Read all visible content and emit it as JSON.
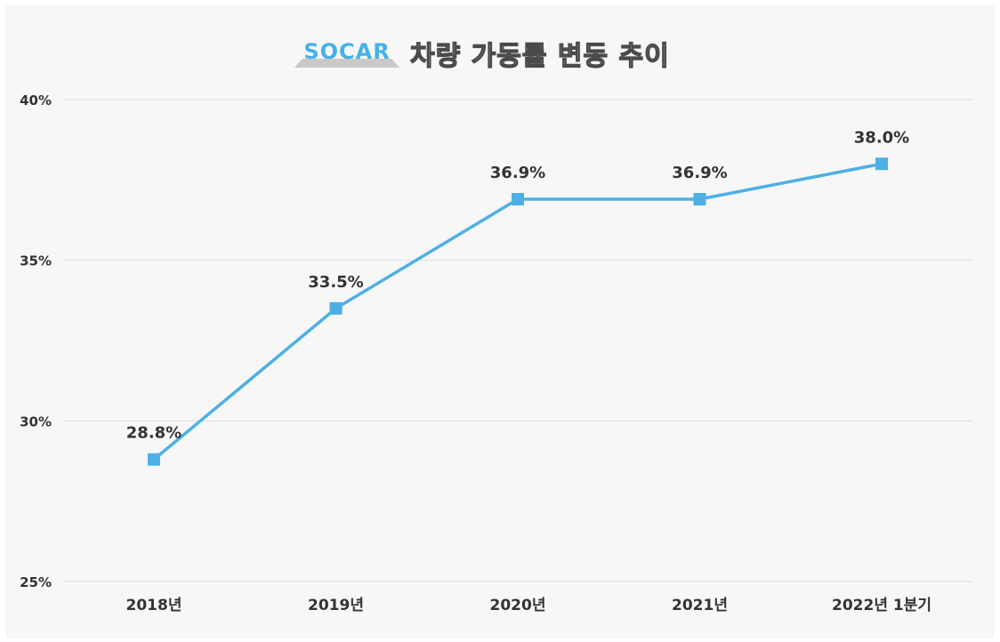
{
  "logo": {
    "text": "SOCAR",
    "color": "#45b1e8"
  },
  "chart_data": {
    "type": "line",
    "title": "차량 가동률 변동 추이",
    "categories": [
      "2018년",
      "2019년",
      "2020년",
      "2021년",
      "2022년 1분기"
    ],
    "series": [
      {
        "values": [
          28.8,
          33.5,
          36.9,
          36.9,
          38.0
        ],
        "color": "#4cb0e4"
      }
    ],
    "data_labels": [
      "28.8%",
      "33.5%",
      "36.9%",
      "36.9%",
      "38.0%"
    ],
    "ylim": [
      25,
      40
    ],
    "yticks": [
      25,
      30,
      35,
      40
    ],
    "ytick_labels": [
      "25%",
      "30%",
      "35%",
      "40%"
    ],
    "grid": true,
    "xlabel": "",
    "ylabel": ""
  }
}
